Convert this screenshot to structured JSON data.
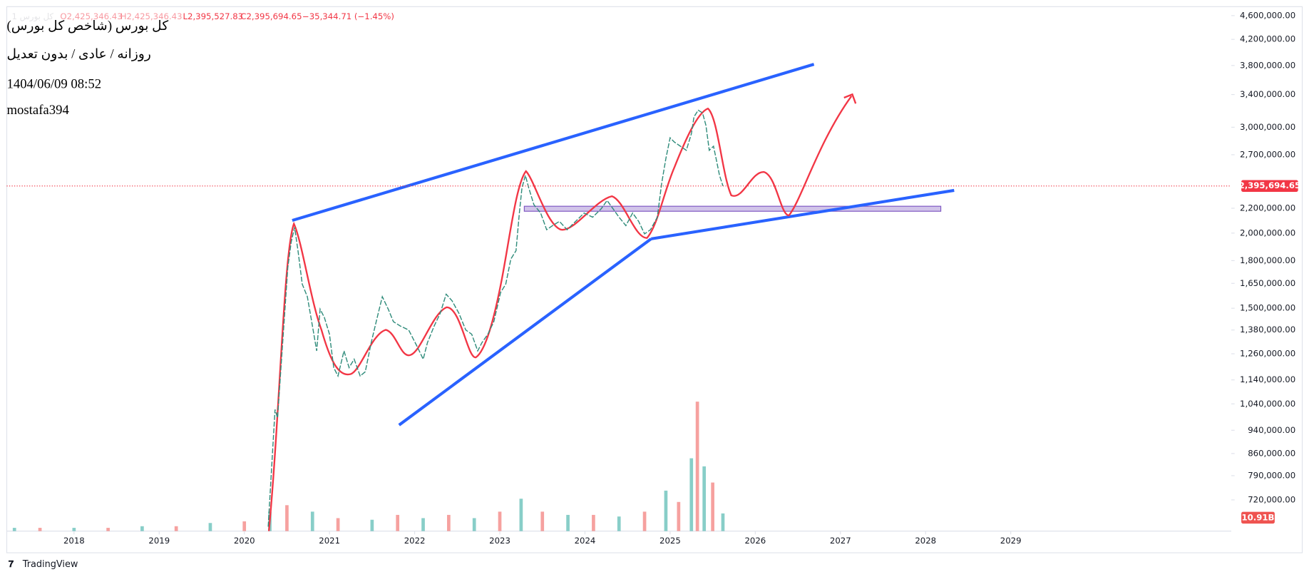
{
  "chart_data": {
    "type": "line",
    "header": {
      "symbol_line": "کل بورس (شاخص کل بورس)",
      "settings_line": "روزانه / عادی / بدون تعدیل",
      "datetime": "1404/06/09 08:52",
      "author": "mostafa394",
      "legend_symbol": "1 کل بورس",
      "open": "O2,425,346.43",
      "high": "H2,425,346.43",
      "low": "L2,395,527.83",
      "close": "C2,395,694.65",
      "change": "−35,344.71 (−1.45%)"
    },
    "log": true,
    "grid": false,
    "color": "#2e8b7a",
    "price_line_color": "#f23645",
    "x": [
      2020.28,
      2020.32,
      2020.36,
      2020.39,
      2020.43,
      2020.47,
      2020.51,
      2020.55,
      2020.59,
      2020.63,
      2020.68,
      2020.74,
      2020.8,
      2020.85,
      2020.89,
      2020.94,
      2021.0,
      2021.05,
      2021.1,
      2021.17,
      2021.23,
      2021.29,
      2021.36,
      2021.42,
      2021.49,
      2021.56,
      2021.62,
      2021.69,
      2021.75,
      2021.83,
      2021.93,
      2022.03,
      2022.1,
      2022.15,
      2022.23,
      2022.3,
      2022.37,
      2022.44,
      2022.52,
      2022.6,
      2022.67,
      2022.74,
      2022.79,
      2022.86,
      2022.93,
      2023.01,
      2023.07,
      2023.13,
      2023.19,
      2023.23,
      2023.26,
      2023.3,
      2023.34,
      2023.4,
      2023.48,
      2023.55,
      2023.62,
      2023.7,
      2023.79,
      2023.89,
      2023.99,
      2024.09,
      2024.19,
      2024.26,
      2024.33,
      2024.4,
      2024.48,
      2024.56,
      2024.63,
      2024.7,
      2024.77,
      2024.85,
      2024.9,
      2024.95,
      2025.0,
      2025.05,
      2025.12,
      2025.19,
      2025.25,
      2025.28,
      2025.33,
      2025.38,
      2025.42,
      2025.46,
      2025.51,
      2025.54,
      2025.58,
      2025.62
    ],
    "values": [
      650000,
      814000,
      1018000,
      986000,
      1195000,
      1448000,
      1754000,
      1931000,
      2045000,
      1870000,
      1645000,
      1568000,
      1402000,
      1274000,
      1495000,
      1448000,
      1358000,
      1195000,
      1157000,
      1274000,
      1195000,
      1234000,
      1157000,
      1176000,
      1315000,
      1448000,
      1568000,
      1495000,
      1425000,
      1402000,
      1380000,
      1295000,
      1234000,
      1315000,
      1402000,
      1471000,
      1583000,
      1543000,
      1471000,
      1380000,
      1358000,
      1274000,
      1315000,
      1358000,
      1425000,
      1594000,
      1645000,
      1811000,
      1870000,
      2160000,
      2377000,
      2494000,
      2377000,
      2230000,
      2160000,
      2026000,
      2058000,
      2092000,
      2026000,
      2092000,
      2160000,
      2126000,
      2195000,
      2266000,
      2195000,
      2126000,
      2058000,
      2160000,
      2092000,
      1994000,
      2026000,
      2126000,
      2416000,
      2660000,
      2881000,
      2835000,
      2790000,
      2746000,
      2927000,
      3122000,
      3202000,
      3170000,
      3022000,
      2746000,
      2790000,
      2660000,
      2494000,
      2395694.65
    ],
    "last_price_label": "2,395,694.65",
    "xlim": [
      2017.21,
      2031.59
    ],
    "xticks": [
      2018,
      2019,
      2020,
      2021,
      2022,
      2023,
      2024,
      2025,
      2026,
      2027,
      2028,
      2029
    ],
    "ylim": [
      639000,
      4760000
    ],
    "yticks": [
      {
        "value": 720000,
        "label": "720,000.00"
      },
      {
        "value": 790000,
        "label": "790,000.00"
      },
      {
        "value": 860000,
        "label": "860,000.00"
      },
      {
        "value": 940000,
        "label": "940,000.00"
      },
      {
        "value": 1040000,
        "label": "1,040,000.00"
      },
      {
        "value": 1140000,
        "label": "1,140,000.00"
      },
      {
        "value": 1260000,
        "label": "1,260,000.00"
      },
      {
        "value": 1380000,
        "label": "1,380,000.00"
      },
      {
        "value": 1500000,
        "label": "1,500,000.00"
      },
      {
        "value": 1650000,
        "label": "1,650,000.00"
      },
      {
        "value": 1800000,
        "label": "1,800,000.00"
      },
      {
        "value": 2000000,
        "label": "2,000,000.00"
      },
      {
        "value": 2200000,
        "label": "2,200,000.00"
      },
      {
        "value": 2700000,
        "label": "2,700,000.00"
      },
      {
        "value": 3000000,
        "label": "3,000,000.00"
      },
      {
        "value": 3400000,
        "label": "3,400,000.00"
      },
      {
        "value": 3800000,
        "label": "3,800,000.00"
      },
      {
        "value": 4200000,
        "label": "4,200,000.00"
      },
      {
        "value": 4600000,
        "label": "4,600,000.00"
      }
    ],
    "volume": {
      "colors": [
        "#26a69a",
        "#ef5350"
      ],
      "x": [
        2017.3,
        2017.6,
        2018.0,
        2018.4,
        2018.8,
        2019.2,
        2019.6,
        2020.0,
        2020.3,
        2020.5,
        2020.8,
        2021.1,
        2021.5,
        2021.8,
        2022.1,
        2022.4,
        2022.7,
        2023.0,
        2023.25,
        2023.5,
        2023.8,
        2024.1,
        2024.4,
        2024.7,
        2024.95,
        2025.1,
        2025.25,
        2025.32,
        2025.4,
        2025.5,
        2025.62
      ],
      "values": [
        2,
        2,
        2,
        2,
        3,
        3,
        5,
        6,
        12,
        16,
        12,
        8,
        7,
        10,
        8,
        10,
        8,
        12,
        20,
        12,
        10,
        10,
        9,
        12,
        25,
        18,
        45,
        80,
        40,
        30,
        10.91
      ],
      "last_label": "10.91B"
    },
    "brand": "TradingView"
  }
}
